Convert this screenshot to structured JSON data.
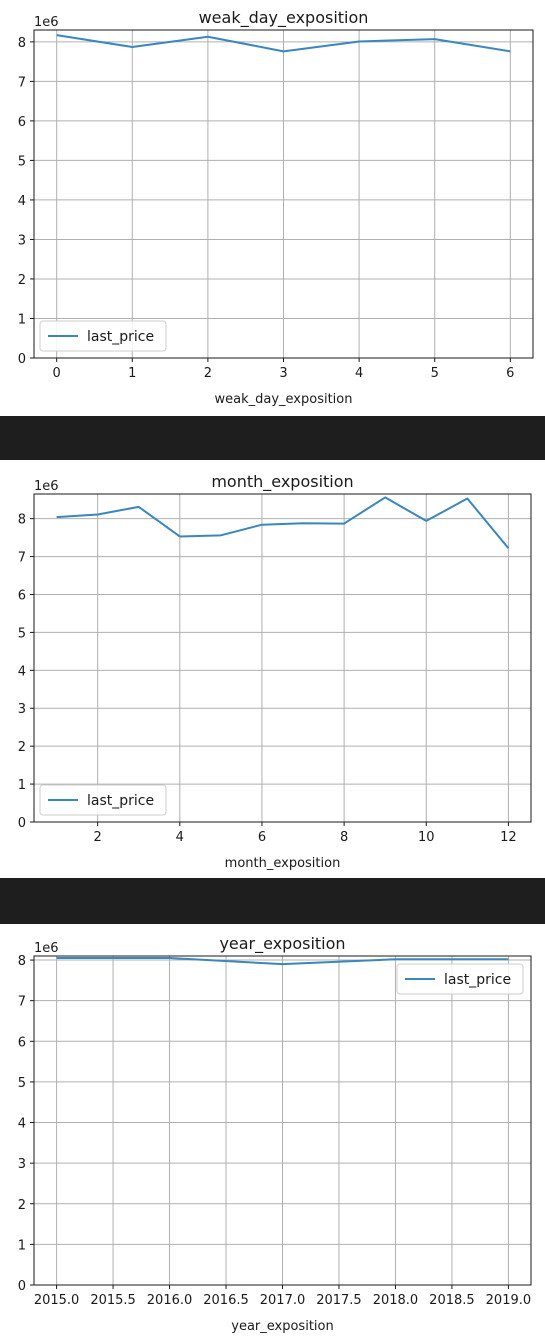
{
  "chart_data": [
    {
      "type": "line",
      "title": "weak_day_exposition",
      "xlabel": "weak_day_exposition",
      "ylabel": "",
      "y_offset_text": "1e6",
      "x": [
        0,
        1,
        2,
        3,
        4,
        5,
        6
      ],
      "series": [
        {
          "name": "last_price",
          "values": [
            8.17,
            7.87,
            8.13,
            7.76,
            8.01,
            8.07,
            7.76
          ]
        }
      ],
      "xlim": [
        -0.3,
        6.3
      ],
      "ylim": [
        0,
        8.3
      ],
      "xticks": [
        0,
        1,
        2,
        3,
        4,
        5,
        6
      ],
      "xtick_labels": [
        "0",
        "1",
        "2",
        "3",
        "4",
        "5",
        "6"
      ],
      "yticks": [
        0,
        1,
        2,
        3,
        4,
        5,
        6,
        7,
        8
      ],
      "ytick_labels": [
        "0",
        "1",
        "2",
        "3",
        "4",
        "5",
        "6",
        "7",
        "8"
      ],
      "grid": true,
      "legend_position": "bottom-left",
      "line_color": "#3a86bf"
    },
    {
      "type": "line",
      "title": "month_exposition",
      "xlabel": "month_exposition",
      "ylabel": "",
      "y_offset_text": "1e6",
      "x": [
        1,
        2,
        3,
        4,
        5,
        6,
        7,
        8,
        9,
        10,
        11,
        12
      ],
      "series": [
        {
          "name": "last_price",
          "values": [
            8.04,
            8.11,
            8.31,
            7.53,
            7.56,
            7.84,
            7.88,
            7.87,
            8.56,
            7.94,
            8.53,
            7.22
          ]
        }
      ],
      "xlim": [
        0.45,
        12.55
      ],
      "ylim": [
        0,
        8.65
      ],
      "xticks": [
        2,
        4,
        6,
        8,
        10,
        12
      ],
      "xtick_labels": [
        "2",
        "4",
        "6",
        "8",
        "10",
        "12"
      ],
      "yticks": [
        0,
        1,
        2,
        3,
        4,
        5,
        6,
        7,
        8
      ],
      "ytick_labels": [
        "0",
        "1",
        "2",
        "3",
        "4",
        "5",
        "6",
        "7",
        "8"
      ],
      "grid": true,
      "legend_position": "bottom-left",
      "line_color": "#3a86bf"
    },
    {
      "type": "line",
      "title": "year_exposition",
      "xlabel": "year_exposition",
      "ylabel": "",
      "y_offset_text": "1e6",
      "x": [
        2015,
        2016,
        2017,
        2018,
        2019
      ],
      "series": [
        {
          "name": "last_price",
          "values": [
            8.05,
            8.05,
            7.9,
            8.02,
            8.02
          ]
        }
      ],
      "xlim": [
        2014.8,
        2019.2
      ],
      "ylim": [
        0,
        8.1
      ],
      "xticks": [
        2015.0,
        2015.5,
        2016.0,
        2016.5,
        2017.0,
        2017.5,
        2018.0,
        2018.5,
        2019.0
      ],
      "xtick_labels": [
        "2015.0",
        "2015.5",
        "2016.0",
        "2016.5",
        "2017.0",
        "2017.5",
        "2018.0",
        "2018.5",
        "2019.0"
      ],
      "yticks": [
        0,
        1,
        2,
        3,
        4,
        5,
        6,
        7,
        8
      ],
      "ytick_labels": [
        "0",
        "1",
        "2",
        "3",
        "4",
        "5",
        "6",
        "7",
        "8"
      ],
      "grid": true,
      "legend_position": "top-right",
      "line_color": "#3a86bf"
    }
  ]
}
